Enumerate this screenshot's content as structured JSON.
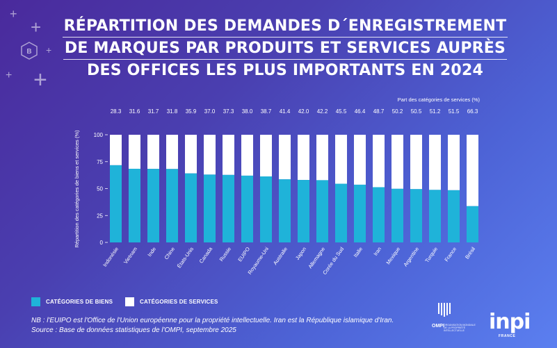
{
  "title_lines": [
    "RÉPARTITION DES DEMANDES D´ENREGISTREMENT",
    "DE MARQUES PAR PRODUITS ET SERVICES AUPRÈS",
    "DES OFFICES LES PLUS IMPORTANTS EN 2024"
  ],
  "chart_data": {
    "type": "bar",
    "stacked": true,
    "categories": [
      "Indonésie",
      "Vietnam",
      "Inde",
      "Chine",
      "États-Unis",
      "Canada",
      "Russie",
      "EUIPO",
      "Royaume-Uni",
      "Australie",
      "Japon",
      "Allemagne",
      "Corée du Sud",
      "Italie",
      "Iran",
      "Mexique",
      "Argentine",
      "Turquie",
      "France",
      "Brésil"
    ],
    "series": [
      {
        "name": "CATÉGORIES DE BIENS",
        "color": "#1fb3d9",
        "values": [
          71.7,
          68.4,
          68.3,
          68.2,
          64.1,
          63.0,
          62.7,
          62.0,
          61.3,
          58.6,
          58.0,
          57.8,
          54.5,
          53.6,
          51.3,
          49.8,
          49.5,
          48.8,
          48.5,
          33.7
        ]
      },
      {
        "name": "CATÉGORIES DE SERVICES",
        "color": "#ffffff",
        "values": [
          28.3,
          31.6,
          31.7,
          31.8,
          35.9,
          37.0,
          37.3,
          38.0,
          38.7,
          41.4,
          42.0,
          42.2,
          45.5,
          46.4,
          48.7,
          50.2,
          50.5,
          51.2,
          51.5,
          66.3
        ]
      }
    ],
    "top_labels": [
      "28.3",
      "31.6",
      "31.7",
      "31.8",
      "35.9",
      "37.0",
      "37.3",
      "38.0",
      "38.7",
      "41.4",
      "42.0",
      "42.2",
      "45.5",
      "46.4",
      "48.7",
      "50.2",
      "50.5",
      "51.2",
      "51.5",
      "66.3"
    ],
    "top_axis_label": "Part des catégories de services (%)",
    "ylabel": "Répartition des catégories de biens et services (%)",
    "xlabel": "",
    "ylim": [
      0,
      100
    ],
    "yticks": [
      0,
      25,
      50,
      75,
      100
    ]
  },
  "legend": {
    "goods_label": "CATÉGORIES DE BIENS",
    "services_label": "CATÉGORIES DE SERVICES"
  },
  "note_lines": [
    "NB : l'EUIPO est l'Office de l'Union européenne pour la propriété intellectuelle. Iran est la République islamique d'Iran.",
    "Source : Base de données statistiques de l'OMPI, septembre 2025"
  ],
  "logos": {
    "ompi_name": "OMPI",
    "ompi_sub": "ORGANISATION MONDIALE DE LA PROPRIÉTÉ INTELLECTUELLE",
    "inpi_name": "inpi",
    "inpi_sub": "FRANCE"
  }
}
